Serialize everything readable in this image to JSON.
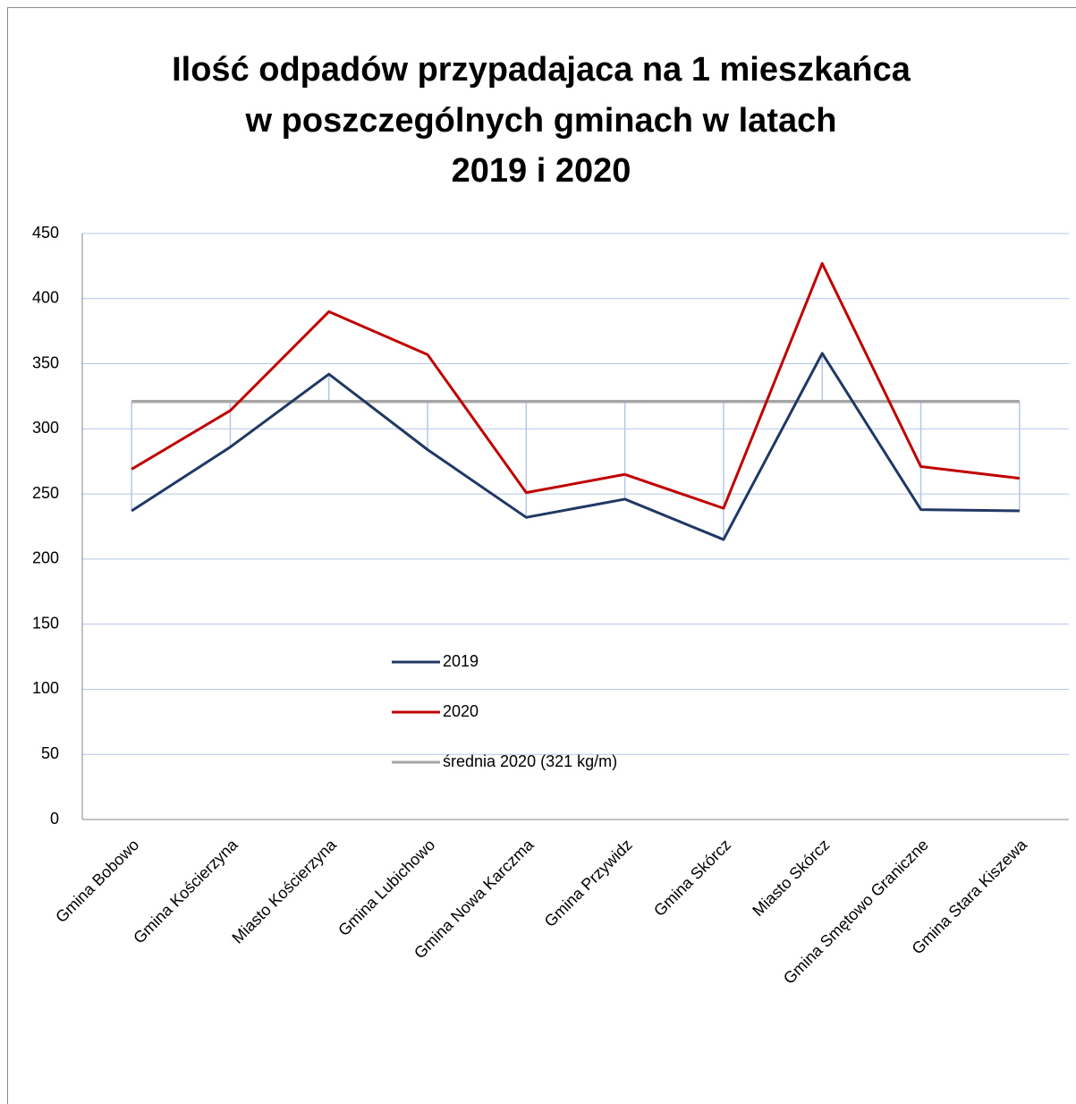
{
  "chart_data": {
    "type": "line",
    "title": [
      "Ilość odpadów przypadajaca na 1 mieszkańca",
      "w poszczególnych gminach w latach",
      "2019 i 2020"
    ],
    "categories": [
      "Gmina Bobowo",
      "Gmina Kościerzyna",
      "Miasto Kościerzyna",
      "Gmina Lubichowo",
      "Gmina Nowa Karczma",
      "Gmina Przywidz",
      "Gmina Skórcz",
      "Miasto Skórcz",
      "Gmina Smętowo Graniczne",
      "Gmina Stara Kiszewa"
    ],
    "series": [
      {
        "name": "2019",
        "color": "#1f3864",
        "values": [
          237,
          286,
          342,
          284,
          232,
          246,
          215,
          358,
          238,
          237
        ]
      },
      {
        "name": "2020",
        "color": "#c00000",
        "values": [
          269,
          314,
          390,
          357,
          251,
          265,
          239,
          427,
          271,
          262
        ]
      },
      {
        "name": "średnia 2020 (321 kg/m)",
        "color": "#a6a6a6",
        "values": [
          321,
          321,
          321,
          321,
          321,
          321,
          321,
          321,
          321,
          321
        ]
      }
    ],
    "ylim": [
      0,
      450
    ],
    "yticks": [
      0,
      50,
      100,
      150,
      200,
      250,
      300,
      350,
      400,
      450
    ],
    "grid": true
  }
}
